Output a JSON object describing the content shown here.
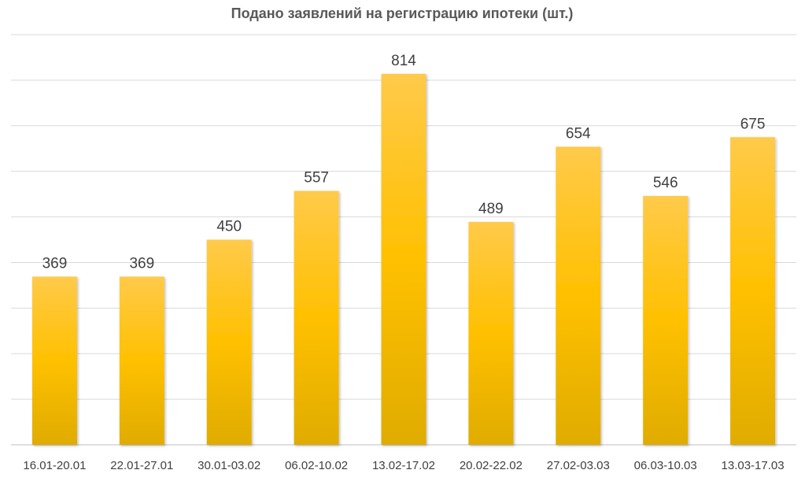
{
  "chart_data": {
    "type": "bar",
    "title": "Подано заявлений на регистрацию ипотеки (шт.)",
    "categories": [
      "16.01-20.01",
      "22.01-27.01",
      "30.01-03.02",
      "06.02-10.02",
      "13.02-17.02",
      "20.02-22.02",
      "27.02-03.03",
      "06.03-10.03",
      "13.03-17.03"
    ],
    "values": [
      369,
      369,
      450,
      557,
      814,
      489,
      654,
      546,
      675
    ],
    "data_labels": [
      "369",
      "369",
      "450",
      "557",
      "814",
      "489",
      "654",
      "546",
      "675"
    ],
    "ylim": [
      0,
      900
    ],
    "y_major_step": 100,
    "grid": true,
    "legend": "none",
    "bar_color_top": "#ffca4a",
    "bar_color_bottom": "#e0ac00"
  }
}
